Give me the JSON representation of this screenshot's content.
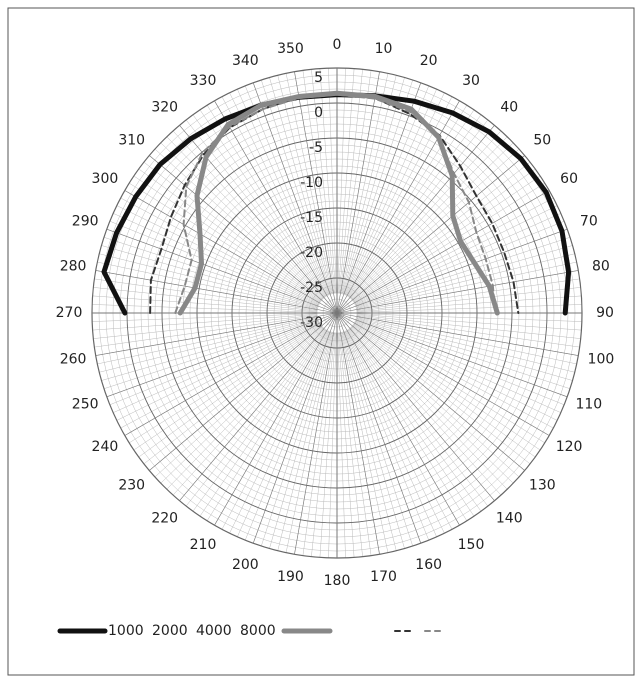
{
  "chart_data": {
    "type": "polar",
    "theta": [
      270,
      280,
      290,
      300,
      310,
      320,
      330,
      340,
      350,
      0,
      10,
      20,
      30,
      40,
      50,
      60,
      70,
      80,
      90
    ],
    "rlim": [
      -30,
      5
    ],
    "rticks": [
      -30,
      -25,
      -20,
      -15,
      -10,
      -5,
      0,
      5
    ],
    "thetaticks": [
      0,
      10,
      20,
      30,
      40,
      50,
      60,
      70,
      80,
      90,
      100,
      110,
      120,
      130,
      140,
      150,
      160,
      170,
      180,
      190,
      200,
      210,
      220,
      230,
      240,
      250,
      260,
      270,
      280,
      290,
      300,
      310,
      320,
      330,
      340,
      350
    ],
    "grid": true,
    "series": [
      {
        "name": "1000",
        "color": "#111111",
        "dashed": false,
        "values": [
          0.3,
          3.8,
          3.5,
          3.2,
          3.0,
          2.5,
          2.0,
          1.6,
          1.3,
          1.2,
          1.5,
          2.2,
          3.0,
          3.8,
          4.3,
          4.5,
          4.2,
          3.6,
          2.6
        ]
      },
      {
        "name": "2000",
        "color": "#333333",
        "dashed": true,
        "values": [
          -3.3,
          -3.0,
          -3.3,
          -2.6,
          -1.6,
          -0.4,
          0.6,
          1.0,
          1.3,
          1.3,
          1.2,
          0.3,
          -0.7,
          -2.6,
          -4.0,
          -4.4,
          -4.6,
          -4.4,
          -4.1
        ]
      },
      {
        "name": "4000",
        "color": "#888888",
        "dashed": true,
        "values": [
          -6.9,
          -7.9,
          -7.9,
          -4.7,
          -1.9,
          -0.1,
          0.7,
          1.0,
          1.2,
          1.2,
          1.1,
          0.6,
          -1.0,
          -4.0,
          -5.4,
          -7.0,
          -7.4,
          -7.4,
          -7.4
        ]
      },
      {
        "name": "8000",
        "color": "#888888",
        "dashed": false,
        "values": [
          -7.6,
          -9.4,
          -9.4,
          -7.4,
          -3.9,
          -0.9,
          1.1,
          1.6,
          1.4,
          1.4,
          1.4,
          1.0,
          -1.0,
          -4.4,
          -8.4,
          -9.6,
          -9.1,
          -7.9,
          -7.1
        ]
      }
    ]
  }
}
